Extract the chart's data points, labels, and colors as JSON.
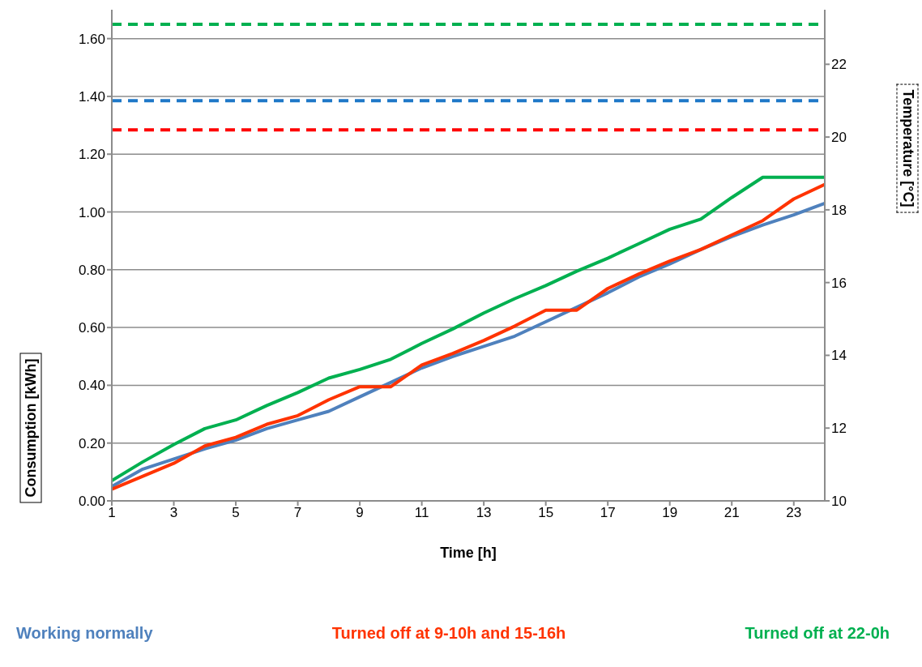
{
  "chart_data": {
    "type": "line",
    "xlabel": "Time [h]",
    "ylabel": "Consumption [kWh]",
    "y2label": "Temperature [°C]",
    "x": [
      1,
      2,
      3,
      4,
      5,
      6,
      7,
      8,
      9,
      10,
      11,
      12,
      13,
      14,
      15,
      16,
      17,
      18,
      19,
      20,
      21,
      22,
      23,
      24
    ],
    "xlim": [
      1,
      24
    ],
    "xticks": [
      1,
      3,
      5,
      7,
      9,
      11,
      13,
      15,
      17,
      19,
      21,
      23
    ],
    "ylim": [
      0,
      1.7
    ],
    "yticks": [
      {
        "value": 0,
        "label": "0.00"
      },
      {
        "value": 0.2,
        "label": "0.20"
      },
      {
        "value": 0.4,
        "label": "0.40"
      },
      {
        "value": 0.6,
        "label": "0.60"
      },
      {
        "value": 0.8,
        "label": "0.80"
      },
      {
        "value": 1,
        "label": "1.00"
      },
      {
        "value": 1.2,
        "label": "1.20"
      },
      {
        "value": 1.4,
        "label": "1.40"
      },
      {
        "value": 1.6,
        "label": "1.60"
      }
    ],
    "y2lim": [
      10,
      23.5
    ],
    "y2ticks": [
      10,
      12,
      14,
      16,
      18,
      20,
      22
    ],
    "grid": "y",
    "legend": "bottom",
    "marker": "none",
    "line_style": "solid",
    "series": [
      {
        "name": "Working normally",
        "color": "#4f81bd",
        "values": [
          0.05,
          0.11,
          0.145,
          0.18,
          0.21,
          0.25,
          0.28,
          0.31,
          0.36,
          0.41,
          0.46,
          0.5,
          0.535,
          0.57,
          0.62,
          0.67,
          0.72,
          0.775,
          0.82,
          0.87,
          0.915,
          0.955,
          0.99,
          1.03
        ]
      },
      {
        "name": "Turned off at 9-10h and 15-16h",
        "color": "#ff3300",
        "values": [
          0.04,
          0.085,
          0.13,
          0.19,
          0.22,
          0.265,
          0.295,
          0.35,
          0.395,
          0.395,
          0.47,
          0.51,
          0.555,
          0.605,
          0.66,
          0.66,
          0.735,
          0.785,
          0.83,
          0.87,
          0.92,
          0.97,
          1.045,
          1.095
        ]
      },
      {
        "name": "Turned off at 22-0h",
        "color": "#00b050",
        "values": [
          0.07,
          0.135,
          0.195,
          0.25,
          0.28,
          0.33,
          0.375,
          0.425,
          0.455,
          0.49,
          0.545,
          0.595,
          0.65,
          0.7,
          0.745,
          0.795,
          0.84,
          0.89,
          0.94,
          0.975,
          1.05,
          1.12,
          1.12,
          1.12
        ]
      },
      {
        "color": "#1f78c8",
        "axis": "y2",
        "line_style": "dashed",
        "values": [
          21,
          21,
          21,
          21,
          21,
          21,
          21,
          21,
          21,
          21,
          21,
          21,
          21,
          21,
          21,
          21,
          21,
          21,
          21,
          21,
          21,
          21,
          21,
          21
        ]
      },
      {
        "color": "#ff0000",
        "axis": "y2",
        "line_style": "dashed",
        "values": [
          20.2,
          20.2,
          20.2,
          20.2,
          20.2,
          20.2,
          20.2,
          20.2,
          20.2,
          20.2,
          20.2,
          20.2,
          20.2,
          20.2,
          20.2,
          20.2,
          20.2,
          20.2,
          20.2,
          20.2,
          20.2,
          20.2,
          20.2,
          20.2
        ]
      },
      {
        "color": "#00b050",
        "axis": "y2",
        "line_style": "dashed",
        "values": [
          23.1,
          23.1,
          23.1,
          23.1,
          23.1,
          23.1,
          23.1,
          23.1,
          23.1,
          23.1,
          23.1,
          23.1,
          23.1,
          23.1,
          23.1,
          23.1,
          23.1,
          23.1,
          23.1,
          23.1,
          23.1,
          23.1,
          23.1,
          23.1
        ]
      }
    ]
  }
}
